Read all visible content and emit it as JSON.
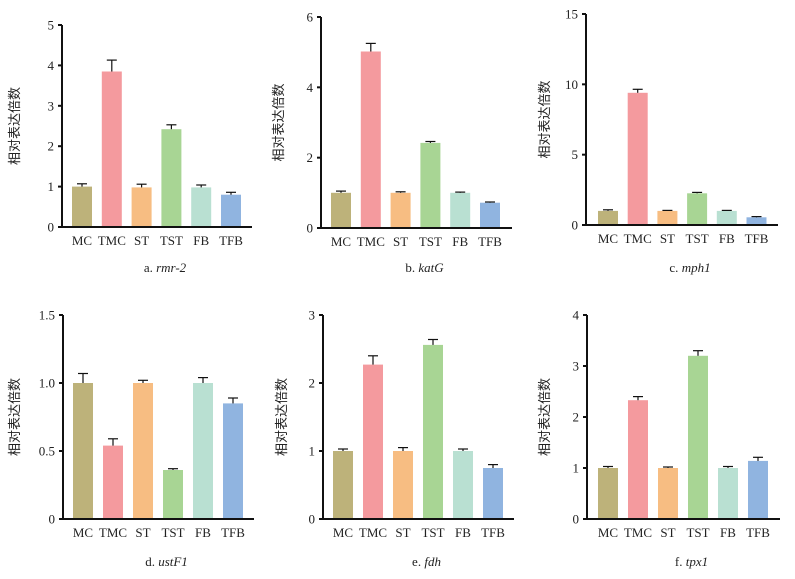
{
  "chart_data": [
    {
      "type": "bar",
      "panel": "a",
      "caption_prefix": "a.",
      "gene": "rmr-2",
      "title": "a. rmr-2",
      "xlabel": "",
      "ylabel": "相对表达倍数",
      "categories": [
        "MC",
        "TMC",
        "ST",
        "TST",
        "FB",
        "TFB"
      ],
      "values": [
        1.0,
        3.85,
        0.98,
        2.42,
        0.98,
        0.8
      ],
      "error_upper": [
        1.07,
        4.13,
        1.06,
        2.53,
        1.04,
        0.86
      ],
      "ylim": [
        0,
        5
      ],
      "yticks": [
        0,
        1,
        2,
        3,
        4,
        5
      ],
      "ytick_labels": [
        "0",
        "1",
        "2",
        "3",
        "4",
        "5"
      ]
    },
    {
      "type": "bar",
      "panel": "b",
      "caption_prefix": "b.",
      "gene": "katG",
      "title": "b. katG",
      "xlabel": "",
      "ylabel": "相对表达倍数",
      "categories": [
        "MC",
        "TMC",
        "ST",
        "TST",
        "FB",
        "TFB"
      ],
      "values": [
        1.0,
        5.02,
        1.0,
        2.42,
        1.0,
        0.72
      ],
      "error_upper": [
        1.05,
        5.25,
        1.03,
        2.46,
        1.02,
        0.74
      ],
      "ylim": [
        0,
        6
      ],
      "yticks": [
        0,
        2,
        4,
        6
      ],
      "ytick_labels": [
        "0",
        "2",
        "4",
        "6"
      ]
    },
    {
      "type": "bar",
      "panel": "c",
      "caption_prefix": "c.",
      "gene": "mph1",
      "title": "c. mph1",
      "xlabel": "",
      "ylabel": "相对表达倍数",
      "categories": [
        "MC",
        "TMC",
        "ST",
        "TST",
        "FB",
        "TFB"
      ],
      "values": [
        1.0,
        9.4,
        1.0,
        2.25,
        1.0,
        0.55
      ],
      "error_upper": [
        1.08,
        9.65,
        1.04,
        2.32,
        1.04,
        0.6
      ],
      "ylim": [
        0,
        15
      ],
      "yticks": [
        0,
        5,
        10,
        15
      ],
      "ytick_labels": [
        "0",
        "5",
        "10",
        "15"
      ]
    },
    {
      "type": "bar",
      "panel": "d",
      "caption_prefix": "d.",
      "gene": "ustF1",
      "title": "d. ustF1",
      "xlabel": "",
      "ylabel": "相对表达倍数",
      "categories": [
        "MC",
        "TMC",
        "ST",
        "TST",
        "FB",
        "TFB"
      ],
      "values": [
        1.0,
        0.54,
        1.0,
        0.36,
        1.0,
        0.85
      ],
      "error_upper": [
        1.07,
        0.59,
        1.02,
        0.37,
        1.04,
        0.89
      ],
      "ylim": [
        0,
        1.5
      ],
      "yticks": [
        0,
        0.5,
        1.0,
        1.5
      ],
      "ytick_labels": [
        "0",
        "0.5",
        "1.0",
        "1.5"
      ]
    },
    {
      "type": "bar",
      "panel": "e",
      "caption_prefix": "e.",
      "gene": "fdh",
      "title": "e. fdh",
      "xlabel": "",
      "ylabel": "相对表达倍数",
      "categories": [
        "MC",
        "TMC",
        "ST",
        "TST",
        "FB",
        "TFB"
      ],
      "values": [
        1.0,
        2.27,
        1.0,
        2.56,
        1.0,
        0.75
      ],
      "error_upper": [
        1.03,
        2.4,
        1.05,
        2.64,
        1.03,
        0.8
      ],
      "ylim": [
        0,
        3
      ],
      "yticks": [
        0,
        1,
        2,
        3
      ],
      "ytick_labels": [
        "0",
        "1",
        "2",
        "3"
      ]
    },
    {
      "type": "bar",
      "panel": "f",
      "caption_prefix": "f.",
      "gene": "tpx1",
      "title": "f. tpx1",
      "xlabel": "",
      "ylabel": "相对表达倍数",
      "categories": [
        "MC",
        "TMC",
        "ST",
        "TST",
        "FB",
        "TFB"
      ],
      "values": [
        1.0,
        2.33,
        1.0,
        3.2,
        1.0,
        1.14
      ],
      "error_upper": [
        1.03,
        2.4,
        1.02,
        3.3,
        1.03,
        1.21
      ],
      "ylim": [
        0,
        4
      ],
      "yticks": [
        0,
        1,
        2,
        3,
        4
      ],
      "ytick_labels": [
        "0",
        "1",
        "2",
        "3",
        "4"
      ]
    }
  ],
  "bar_colors": {
    "MC": "#BDB27A",
    "TMC": "#F49A9E",
    "ST": "#F7BD82",
    "TST": "#A8D594",
    "FB": "#B9E0D2",
    "TFB": "#90B4E0"
  },
  "axis_color": "#111111"
}
